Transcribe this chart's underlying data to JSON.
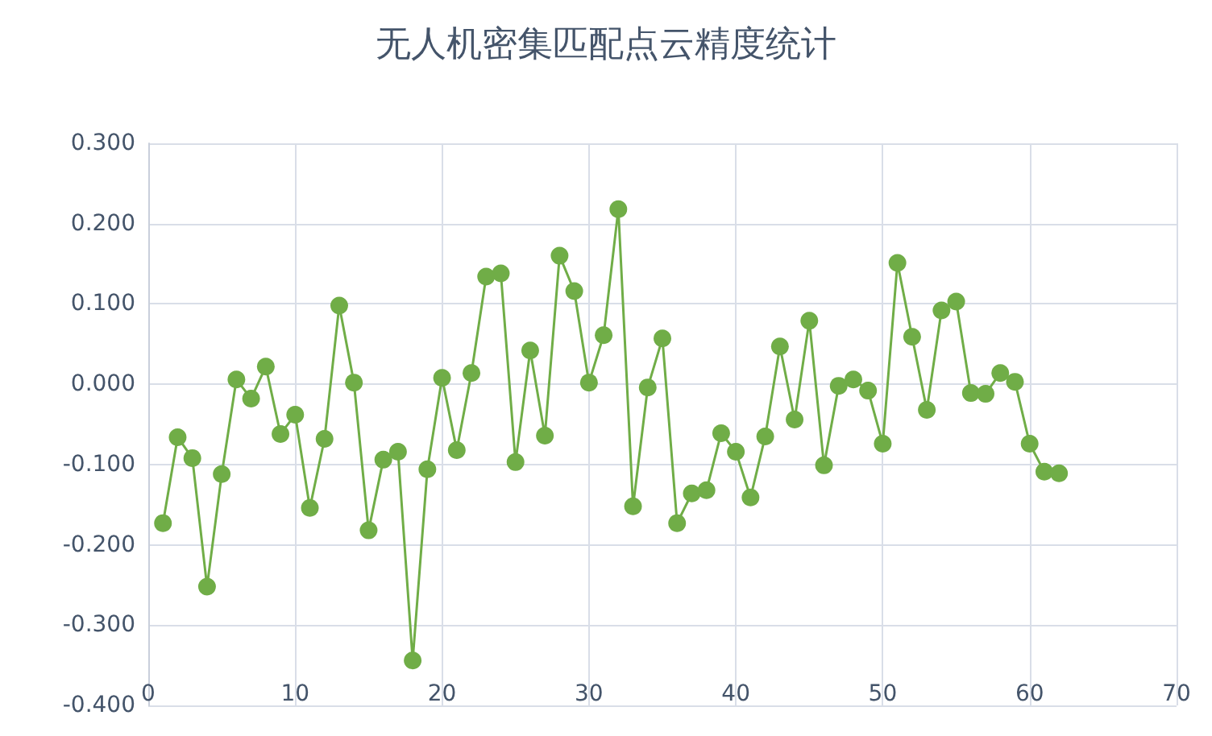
{
  "chart_data": {
    "type": "line",
    "title": "无人机密集匹配点云精度统计",
    "x": [
      1,
      2,
      3,
      4,
      5,
      6,
      7,
      8,
      9,
      10,
      11,
      12,
      13,
      14,
      15,
      16,
      17,
      18,
      19,
      20,
      21,
      22,
      23,
      24,
      25,
      26,
      27,
      28,
      29,
      30,
      31,
      32,
      33,
      34,
      35,
      36,
      37,
      38,
      39,
      40,
      41,
      42,
      43,
      44,
      45,
      46,
      47,
      48,
      49,
      50,
      51,
      52,
      53,
      54,
      55,
      56,
      57,
      58,
      59,
      60,
      61,
      62
    ],
    "series": [
      {
        "color": "#70ad47",
        "values": [
          -0.173,
          -0.066,
          -0.092,
          -0.252,
          -0.112,
          0.006,
          -0.018,
          0.022,
          -0.062,
          -0.038,
          -0.154,
          -0.068,
          0.098,
          0.002,
          -0.182,
          -0.094,
          -0.084,
          -0.344,
          -0.106,
          0.008,
          -0.082,
          0.014,
          0.134,
          0.138,
          -0.097,
          0.042,
          -0.064,
          0.16,
          0.116,
          0.002,
          0.061,
          0.218,
          -0.152,
          -0.004,
          0.057,
          -0.173,
          -0.136,
          -0.132,
          -0.061,
          -0.084,
          -0.141,
          -0.065,
          0.047,
          -0.044,
          0.079,
          -0.101,
          -0.002,
          0.006,
          -0.008,
          -0.074,
          0.151,
          0.059,
          -0.032,
          0.092,
          0.103,
          -0.011,
          -0.012,
          0.014,
          0.003,
          -0.074,
          -0.109,
          -0.111
        ]
      }
    ],
    "xlim": [
      0,
      70
    ],
    "xticks": [
      0,
      10,
      20,
      30,
      40,
      50,
      60,
      70
    ],
    "ylim": [
      -0.4,
      0.3
    ],
    "yticks": [
      {
        "value": -0.4,
        "label": "-0.400"
      },
      {
        "value": -0.3,
        "label": "-0.300"
      },
      {
        "value": -0.2,
        "label": "-0.200"
      },
      {
        "value": -0.1,
        "label": "-0.100"
      },
      {
        "value": 0,
        "label": "0.000"
      },
      {
        "value": 0.1,
        "label": "0.100"
      },
      {
        "value": 0.2,
        "label": "0.200"
      },
      {
        "value": 0.3,
        "label": "0.300"
      }
    ],
    "grid": true,
    "marker": "circle",
    "line_style": "solid"
  }
}
